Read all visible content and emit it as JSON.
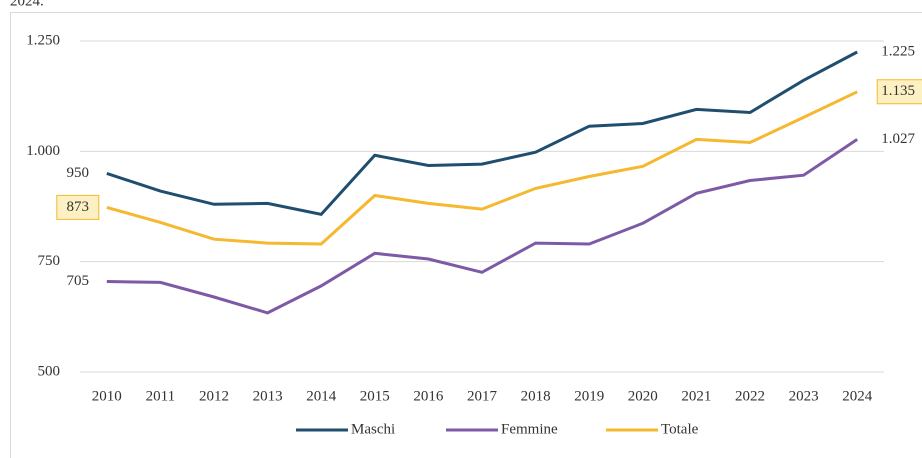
{
  "chart_data": {
    "type": "line",
    "note": "2024.",
    "categories": [
      "2010",
      "2011",
      "2012",
      "2013",
      "2014",
      "2015",
      "2016",
      "2017",
      "2018",
      "2019",
      "2020",
      "2021",
      "2022",
      "2023",
      "2024"
    ],
    "series": [
      {
        "name": "Maschi",
        "color": "#1f4e6f",
        "values": [
          950,
          910,
          880,
          882,
          857,
          991,
          968,
          971,
          998,
          1057,
          1063,
          1095,
          1088,
          1161,
          1225
        ],
        "value_labels": [
          "950",
          null,
          null,
          null,
          null,
          null,
          null,
          null,
          null,
          null,
          null,
          null,
          null,
          null,
          "1.225"
        ]
      },
      {
        "name": "Femmine",
        "color": "#7e5aa6",
        "values": [
          705,
          703,
          670,
          634,
          695,
          769,
          756,
          726,
          792,
          790,
          837,
          905,
          934,
          946,
          1027
        ],
        "value_labels": [
          "705",
          null,
          null,
          null,
          null,
          null,
          null,
          null,
          null,
          null,
          null,
          null,
          null,
          null,
          "1.027"
        ]
      },
      {
        "name": "Totale",
        "color": "#f5b82e",
        "values": [
          873,
          839,
          801,
          792,
          790,
          900,
          882,
          869,
          916,
          943,
          966,
          1027,
          1020,
          1077,
          1135
        ],
        "value_labels": [
          "873",
          null,
          null,
          null,
          null,
          null,
          null,
          null,
          null,
          null,
          null,
          null,
          null,
          null,
          "1.135"
        ]
      }
    ],
    "ylim": [
      500,
      1250
    ],
    "yticks": [
      500,
      750,
      {
        "value": 1000,
        "label": "1.000"
      },
      {
        "value": 1250,
        "label": "1.250"
      }
    ],
    "grid": true,
    "legend": "bottom"
  }
}
